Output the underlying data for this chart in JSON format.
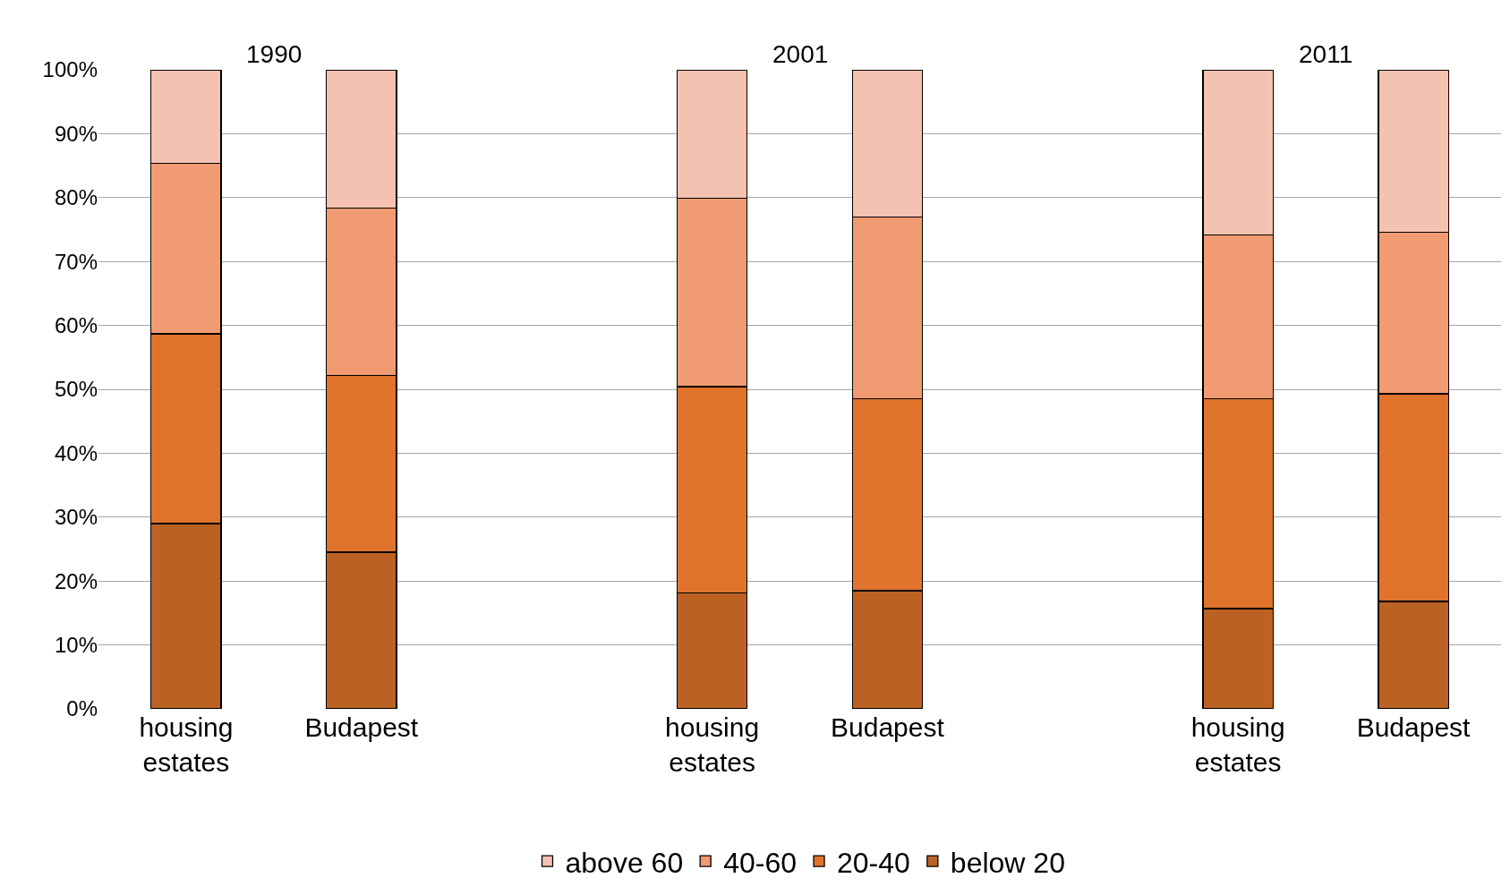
{
  "chart_data": {
    "type": "bar",
    "stacked": true,
    "categories": [
      "housing estates",
      "Budapest",
      null,
      "housing estates",
      "Budapest",
      null,
      "housing estates",
      "Budapest"
    ],
    "series": [
      {
        "name": "below 20",
        "color": "#bc6124",
        "values": [
          29.0,
          24.5,
          null,
          18.1,
          18.5,
          null,
          15.7,
          16.8
        ]
      },
      {
        "name": "20-40",
        "color": "#e0742c",
        "values": [
          29.7,
          27.7,
          null,
          32.3,
          30.0,
          null,
          32.8,
          32.5
        ]
      },
      {
        "name": "40-60",
        "color": "#f09b72",
        "values": [
          26.7,
          26.2,
          null,
          29.5,
          28.5,
          null,
          25.7,
          25.3
        ]
      },
      {
        "name": "above 60",
        "color": "#f5c2b1",
        "values": [
          14.6,
          21.6,
          null,
          20.1,
          23.0,
          null,
          25.8,
          25.4
        ]
      }
    ],
    "annotations": [
      "1990",
      "2001",
      "2011"
    ],
    "ylim": [
      0,
      100
    ],
    "yticks": [
      {
        "value": 0,
        "label": "0%"
      },
      {
        "value": 10,
        "label": "10%"
      },
      {
        "value": 20,
        "label": "20%"
      },
      {
        "value": 30,
        "label": "30%"
      },
      {
        "value": 40,
        "label": "40%"
      },
      {
        "value": 50,
        "label": "50%"
      },
      {
        "value": 60,
        "label": "60%"
      },
      {
        "value": 70,
        "label": "70%"
      },
      {
        "value": 80,
        "label": "80%"
      },
      {
        "value": 90,
        "label": "90%"
      },
      {
        "value": 100,
        "label": "100%"
      }
    ],
    "grid": "y",
    "legend": "bottom"
  }
}
